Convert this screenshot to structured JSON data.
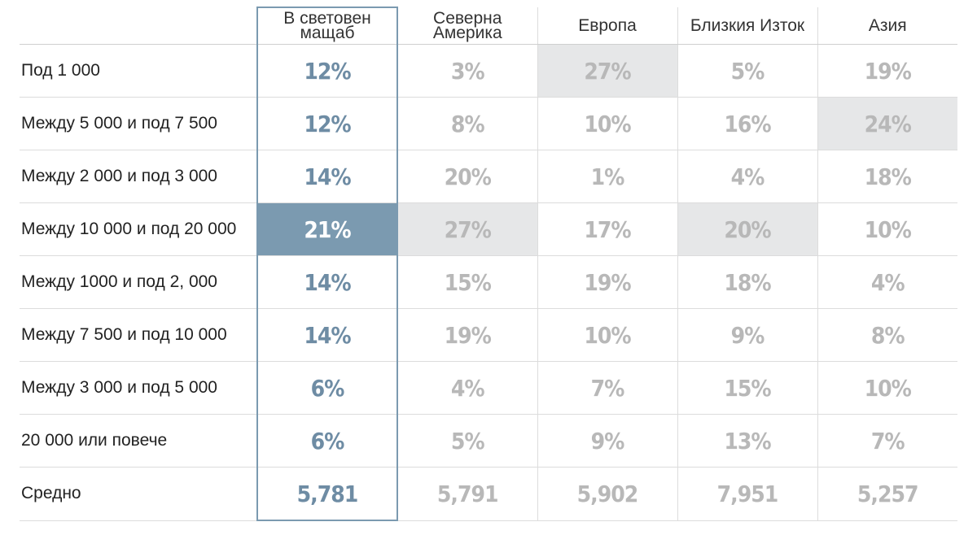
{
  "columns": [
    "В световен мащаб",
    "Северна Америка",
    "Европа",
    "Близкия Изток",
    "Азия"
  ],
  "column_lines": [
    [
      "В световен",
      "мащаб"
    ],
    [
      "Северна",
      "Америка"
    ],
    [
      "Европа"
    ],
    [
      "Близкия Изток"
    ],
    [
      "Азия"
    ]
  ],
  "rows": [
    {
      "label": "Под 1 000",
      "values": [
        "12%",
        "3%",
        "27%",
        "5%",
        "19%"
      ],
      "highlight": [
        null,
        null,
        "grey",
        null,
        null
      ]
    },
    {
      "label": "Между 5 000 и под 7 500",
      "values": [
        "12%",
        "8%",
        "10%",
        "16%",
        "24%"
      ],
      "highlight": [
        null,
        null,
        null,
        null,
        "grey"
      ]
    },
    {
      "label": "Между 2 000 и под 3 000",
      "values": [
        "14%",
        "20%",
        "1%",
        "4%",
        "18%"
      ],
      "highlight": [
        null,
        null,
        null,
        null,
        null
      ]
    },
    {
      "label": "Между 10 000 и под 20 000",
      "values": [
        "21%",
        "27%",
        "17%",
        "20%",
        "10%"
      ],
      "highlight": [
        "blue",
        "grey",
        null,
        "grey",
        null
      ]
    },
    {
      "label": "Между 1000 и под 2, 000",
      "values": [
        "14%",
        "15%",
        "19%",
        "18%",
        "4%"
      ],
      "highlight": [
        null,
        null,
        null,
        null,
        null
      ]
    },
    {
      "label": "Между 7 500 и под 10 000",
      "values": [
        "14%",
        "19%",
        "10%",
        "9%",
        "8%"
      ],
      "highlight": [
        null,
        null,
        null,
        null,
        null
      ]
    },
    {
      "label": "Между 3 000  и под 5 000",
      "values": [
        "6%",
        "4%",
        "7%",
        "15%",
        "10%"
      ],
      "highlight": [
        null,
        null,
        null,
        null,
        null
      ]
    },
    {
      "label": "20 000 или повече",
      "values": [
        "6%",
        "5%",
        "9%",
        "13%",
        "7%"
      ],
      "highlight": [
        null,
        null,
        null,
        null,
        null
      ]
    },
    {
      "label": "Средно",
      "values": [
        "5,781",
        "5,791",
        "5,902",
        "7,951",
        "5,257"
      ],
      "highlight": [
        null,
        null,
        null,
        null,
        null
      ]
    }
  ],
  "colors": {
    "accent": "#7b9ab0",
    "accent_text": "#6e8ca4",
    "muted_text": "#b8b8b8",
    "highlight_grey": "#e6e7e8"
  }
}
